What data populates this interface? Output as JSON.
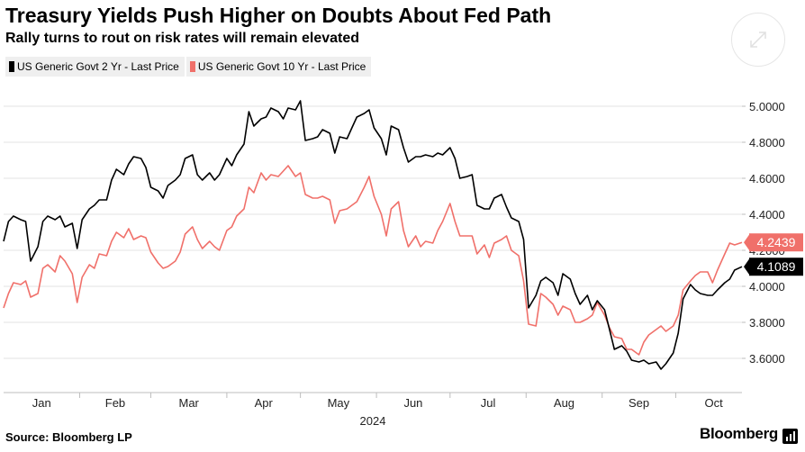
{
  "header": {
    "title": "Treasury Yields Push Higher on Doubts About Fed Path",
    "subtitle": "Rally turns to rout on risk rates will remain elevated"
  },
  "footer": {
    "source": "Source: Bloomberg LP",
    "brand": "Bloomberg"
  },
  "colors": {
    "series_2yr": "#000000",
    "series_10yr": "#f0706a",
    "grid": "#e3e3e3",
    "legend_bg": "#efefef"
  },
  "chart_data": {
    "type": "line",
    "title": "Treasury Yields Push Higher on Doubts About Fed Path",
    "subtitle": "Rally turns to rout on risk rates will remain elevated",
    "xlabel": "2024",
    "ylabel": "",
    "x_ticks": [
      "Jan",
      "Feb",
      "Mar",
      "Apr",
      "May",
      "Jun",
      "Jul",
      "Aug",
      "Sep",
      "Oct"
    ],
    "x_year_label": "2024",
    "x_range": [
      "2024-01-01",
      "2024-10-28"
    ],
    "ylim": [
      3.41,
      5.13
    ],
    "y_ticks": [
      3.6,
      3.8,
      4.0,
      4.2,
      4.4,
      4.6,
      4.8,
      5.0
    ],
    "y_tick_labels": [
      "3.6000",
      "3.8000",
      "4.0000",
      "4.2000",
      "4.4000",
      "4.6000",
      "4.8000",
      "5.0000"
    ],
    "grid": true,
    "legend_position": "top-left",
    "series": [
      {
        "name": "US Generic Govt 2 Yr - Last Price",
        "color": "#000000",
        "last_value_label": "4.1089",
        "points": [
          [
            "2024-01-01",
            4.25
          ],
          [
            "2024-01-03",
            4.36
          ],
          [
            "2024-01-05",
            4.39
          ],
          [
            "2024-01-08",
            4.37
          ],
          [
            "2024-01-10",
            4.36
          ],
          [
            "2024-01-12",
            4.14
          ],
          [
            "2024-01-15",
            4.22
          ],
          [
            "2024-01-17",
            4.36
          ],
          [
            "2024-01-19",
            4.39
          ],
          [
            "2024-01-22",
            4.37
          ],
          [
            "2024-01-24",
            4.39
          ],
          [
            "2024-01-26",
            4.33
          ],
          [
            "2024-01-29",
            4.35
          ],
          [
            "2024-01-31",
            4.21
          ],
          [
            "2024-02-02",
            4.37
          ],
          [
            "2024-02-05",
            4.43
          ],
          [
            "2024-02-07",
            4.45
          ],
          [
            "2024-02-09",
            4.48
          ],
          [
            "2024-02-12",
            4.48
          ],
          [
            "2024-02-14",
            4.59
          ],
          [
            "2024-02-16",
            4.65
          ],
          [
            "2024-02-19",
            4.62
          ],
          [
            "2024-02-21",
            4.68
          ],
          [
            "2024-02-23",
            4.72
          ],
          [
            "2024-02-26",
            4.71
          ],
          [
            "2024-02-28",
            4.66
          ],
          [
            "2024-03-01",
            4.55
          ],
          [
            "2024-03-04",
            4.53
          ],
          [
            "2024-03-06",
            4.49
          ],
          [
            "2024-03-08",
            4.56
          ],
          [
            "2024-03-11",
            4.59
          ],
          [
            "2024-03-13",
            4.62
          ],
          [
            "2024-03-15",
            4.71
          ],
          [
            "2024-03-18",
            4.73
          ],
          [
            "2024-03-20",
            4.62
          ],
          [
            "2024-03-22",
            4.59
          ],
          [
            "2024-03-25",
            4.63
          ],
          [
            "2024-03-27",
            4.59
          ],
          [
            "2024-03-29",
            4.62
          ],
          [
            "2024-04-01",
            4.71
          ],
          [
            "2024-04-03",
            4.67
          ],
          [
            "2024-04-05",
            4.73
          ],
          [
            "2024-04-08",
            4.79
          ],
          [
            "2024-04-10",
            4.97
          ],
          [
            "2024-04-12",
            4.89
          ],
          [
            "2024-04-15",
            4.93
          ],
          [
            "2024-04-17",
            4.94
          ],
          [
            "2024-04-19",
            4.99
          ],
          [
            "2024-04-22",
            4.97
          ],
          [
            "2024-04-24",
            4.93
          ],
          [
            "2024-04-26",
            4.99
          ],
          [
            "2024-04-29",
            4.98
          ],
          [
            "2024-05-01",
            5.03
          ],
          [
            "2024-05-03",
            4.81
          ],
          [
            "2024-05-06",
            4.82
          ],
          [
            "2024-05-08",
            4.83
          ],
          [
            "2024-05-10",
            4.87
          ],
          [
            "2024-05-13",
            4.85
          ],
          [
            "2024-05-15",
            4.74
          ],
          [
            "2024-05-17",
            4.83
          ],
          [
            "2024-05-20",
            4.82
          ],
          [
            "2024-05-22",
            4.88
          ],
          [
            "2024-05-24",
            4.94
          ],
          [
            "2024-05-27",
            4.96
          ],
          [
            "2024-05-29",
            4.98
          ],
          [
            "2024-05-31",
            4.88
          ],
          [
            "2024-06-03",
            4.82
          ],
          [
            "2024-06-05",
            4.73
          ],
          [
            "2024-06-07",
            4.89
          ],
          [
            "2024-06-10",
            4.87
          ],
          [
            "2024-06-12",
            4.77
          ],
          [
            "2024-06-14",
            4.69
          ],
          [
            "2024-06-17",
            4.72
          ],
          [
            "2024-06-19",
            4.72
          ],
          [
            "2024-06-21",
            4.73
          ],
          [
            "2024-06-24",
            4.72
          ],
          [
            "2024-06-26",
            4.74
          ],
          [
            "2024-06-28",
            4.73
          ],
          [
            "2024-07-01",
            4.77
          ],
          [
            "2024-07-03",
            4.71
          ],
          [
            "2024-07-05",
            4.6
          ],
          [
            "2024-07-08",
            4.61
          ],
          [
            "2024-07-10",
            4.62
          ],
          [
            "2024-07-12",
            4.45
          ],
          [
            "2024-07-15",
            4.43
          ],
          [
            "2024-07-17",
            4.43
          ],
          [
            "2024-07-19",
            4.49
          ],
          [
            "2024-07-22",
            4.51
          ],
          [
            "2024-07-24",
            4.44
          ],
          [
            "2024-07-26",
            4.38
          ],
          [
            "2024-07-29",
            4.36
          ],
          [
            "2024-07-31",
            4.26
          ],
          [
            "2024-08-02",
            3.88
          ],
          [
            "2024-08-05",
            3.95
          ],
          [
            "2024-08-07",
            4.03
          ],
          [
            "2024-08-09",
            4.05
          ],
          [
            "2024-08-12",
            4.02
          ],
          [
            "2024-08-14",
            3.95
          ],
          [
            "2024-08-16",
            4.07
          ],
          [
            "2024-08-19",
            4.04
          ],
          [
            "2024-08-21",
            3.96
          ],
          [
            "2024-08-23",
            3.9
          ],
          [
            "2024-08-26",
            3.95
          ],
          [
            "2024-08-28",
            3.87
          ],
          [
            "2024-08-30",
            3.92
          ],
          [
            "2024-09-02",
            3.87
          ],
          [
            "2024-09-04",
            3.76
          ],
          [
            "2024-09-06",
            3.65
          ],
          [
            "2024-09-09",
            3.67
          ],
          [
            "2024-09-11",
            3.64
          ],
          [
            "2024-09-13",
            3.59
          ],
          [
            "2024-09-16",
            3.58
          ],
          [
            "2024-09-18",
            3.59
          ],
          [
            "2024-09-20",
            3.57
          ],
          [
            "2024-09-23",
            3.58
          ],
          [
            "2024-09-25",
            3.54
          ],
          [
            "2024-09-27",
            3.57
          ],
          [
            "2024-09-30",
            3.63
          ],
          [
            "2024-10-02",
            3.74
          ],
          [
            "2024-10-04",
            3.93
          ],
          [
            "2024-10-07",
            4.01
          ],
          [
            "2024-10-09",
            3.98
          ],
          [
            "2024-10-11",
            3.96
          ],
          [
            "2024-10-14",
            3.95
          ],
          [
            "2024-10-16",
            3.95
          ],
          [
            "2024-10-18",
            3.98
          ],
          [
            "2024-10-21",
            4.02
          ],
          [
            "2024-10-23",
            4.04
          ],
          [
            "2024-10-25",
            4.09
          ],
          [
            "2024-10-28",
            4.1089
          ]
        ]
      },
      {
        "name": "US Generic Govt 10 Yr - Last Price",
        "color": "#f0706a",
        "last_value_label": "4.2439",
        "points": [
          [
            "2024-01-01",
            3.88
          ],
          [
            "2024-01-03",
            3.96
          ],
          [
            "2024-01-05",
            4.02
          ],
          [
            "2024-01-08",
            4.01
          ],
          [
            "2024-01-10",
            4.03
          ],
          [
            "2024-01-12",
            3.94
          ],
          [
            "2024-01-15",
            3.96
          ],
          [
            "2024-01-17",
            4.1
          ],
          [
            "2024-01-19",
            4.12
          ],
          [
            "2024-01-22",
            4.08
          ],
          [
            "2024-01-24",
            4.17
          ],
          [
            "2024-01-26",
            4.14
          ],
          [
            "2024-01-29",
            4.07
          ],
          [
            "2024-01-31",
            3.91
          ],
          [
            "2024-02-02",
            4.05
          ],
          [
            "2024-02-05",
            4.12
          ],
          [
            "2024-02-07",
            4.1
          ],
          [
            "2024-02-09",
            4.18
          ],
          [
            "2024-02-12",
            4.17
          ],
          [
            "2024-02-14",
            4.25
          ],
          [
            "2024-02-16",
            4.3
          ],
          [
            "2024-02-19",
            4.27
          ],
          [
            "2024-02-21",
            4.32
          ],
          [
            "2024-02-23",
            4.26
          ],
          [
            "2024-02-26",
            4.28
          ],
          [
            "2024-02-28",
            4.27
          ],
          [
            "2024-03-01",
            4.19
          ],
          [
            "2024-03-04",
            4.13
          ],
          [
            "2024-03-06",
            4.1
          ],
          [
            "2024-03-08",
            4.11
          ],
          [
            "2024-03-11",
            4.14
          ],
          [
            "2024-03-13",
            4.19
          ],
          [
            "2024-03-15",
            4.29
          ],
          [
            "2024-03-18",
            4.33
          ],
          [
            "2024-03-20",
            4.26
          ],
          [
            "2024-03-22",
            4.21
          ],
          [
            "2024-03-25",
            4.25
          ],
          [
            "2024-03-27",
            4.22
          ],
          [
            "2024-03-29",
            4.2
          ],
          [
            "2024-04-01",
            4.31
          ],
          [
            "2024-04-03",
            4.33
          ],
          [
            "2024-04-05",
            4.39
          ],
          [
            "2024-04-08",
            4.43
          ],
          [
            "2024-04-10",
            4.55
          ],
          [
            "2024-04-12",
            4.52
          ],
          [
            "2024-04-15",
            4.63
          ],
          [
            "2024-04-17",
            4.59
          ],
          [
            "2024-04-19",
            4.62
          ],
          [
            "2024-04-22",
            4.61
          ],
          [
            "2024-04-24",
            4.64
          ],
          [
            "2024-04-26",
            4.67
          ],
          [
            "2024-04-29",
            4.61
          ],
          [
            "2024-05-01",
            4.63
          ],
          [
            "2024-05-03",
            4.51
          ],
          [
            "2024-05-06",
            4.49
          ],
          [
            "2024-05-08",
            4.49
          ],
          [
            "2024-05-10",
            4.5
          ],
          [
            "2024-05-13",
            4.48
          ],
          [
            "2024-05-15",
            4.35
          ],
          [
            "2024-05-17",
            4.42
          ],
          [
            "2024-05-20",
            4.43
          ],
          [
            "2024-05-22",
            4.45
          ],
          [
            "2024-05-24",
            4.47
          ],
          [
            "2024-05-27",
            4.55
          ],
          [
            "2024-05-29",
            4.61
          ],
          [
            "2024-05-31",
            4.5
          ],
          [
            "2024-06-03",
            4.4
          ],
          [
            "2024-06-05",
            4.28
          ],
          [
            "2024-06-07",
            4.43
          ],
          [
            "2024-06-10",
            4.47
          ],
          [
            "2024-06-12",
            4.31
          ],
          [
            "2024-06-14",
            4.22
          ],
          [
            "2024-06-17",
            4.28
          ],
          [
            "2024-06-19",
            4.22
          ],
          [
            "2024-06-21",
            4.25
          ],
          [
            "2024-06-24",
            4.24
          ],
          [
            "2024-06-26",
            4.31
          ],
          [
            "2024-06-28",
            4.36
          ],
          [
            "2024-07-01",
            4.46
          ],
          [
            "2024-07-03",
            4.36
          ],
          [
            "2024-07-05",
            4.28
          ],
          [
            "2024-07-08",
            4.28
          ],
          [
            "2024-07-10",
            4.28
          ],
          [
            "2024-07-12",
            4.18
          ],
          [
            "2024-07-15",
            4.23
          ],
          [
            "2024-07-17",
            4.16
          ],
          [
            "2024-07-19",
            4.24
          ],
          [
            "2024-07-22",
            4.26
          ],
          [
            "2024-07-24",
            4.28
          ],
          [
            "2024-07-26",
            4.2
          ],
          [
            "2024-07-29",
            4.17
          ],
          [
            "2024-07-31",
            4.03
          ],
          [
            "2024-08-02",
            3.79
          ],
          [
            "2024-08-05",
            3.78
          ],
          [
            "2024-08-07",
            3.96
          ],
          [
            "2024-08-09",
            3.94
          ],
          [
            "2024-08-12",
            3.9
          ],
          [
            "2024-08-14",
            3.84
          ],
          [
            "2024-08-16",
            3.89
          ],
          [
            "2024-08-19",
            3.87
          ],
          [
            "2024-08-21",
            3.8
          ],
          [
            "2024-08-23",
            3.8
          ],
          [
            "2024-08-26",
            3.82
          ],
          [
            "2024-08-28",
            3.84
          ],
          [
            "2024-08-30",
            3.91
          ],
          [
            "2024-09-02",
            3.84
          ],
          [
            "2024-09-04",
            3.77
          ],
          [
            "2024-09-06",
            3.72
          ],
          [
            "2024-09-09",
            3.71
          ],
          [
            "2024-09-11",
            3.65
          ],
          [
            "2024-09-13",
            3.65
          ],
          [
            "2024-09-16",
            3.62
          ],
          [
            "2024-09-18",
            3.69
          ],
          [
            "2024-09-20",
            3.73
          ],
          [
            "2024-09-23",
            3.76
          ],
          [
            "2024-09-25",
            3.78
          ],
          [
            "2024-09-27",
            3.75
          ],
          [
            "2024-09-30",
            3.78
          ],
          [
            "2024-10-02",
            3.84
          ],
          [
            "2024-10-04",
            3.98
          ],
          [
            "2024-10-07",
            4.03
          ],
          [
            "2024-10-09",
            4.06
          ],
          [
            "2024-10-11",
            4.08
          ],
          [
            "2024-10-14",
            4.08
          ],
          [
            "2024-10-16",
            4.02
          ],
          [
            "2024-10-18",
            4.09
          ],
          [
            "2024-10-21",
            4.18
          ],
          [
            "2024-10-23",
            4.24
          ],
          [
            "2024-10-25",
            4.23
          ],
          [
            "2024-10-28",
            4.2439
          ]
        ]
      }
    ]
  }
}
